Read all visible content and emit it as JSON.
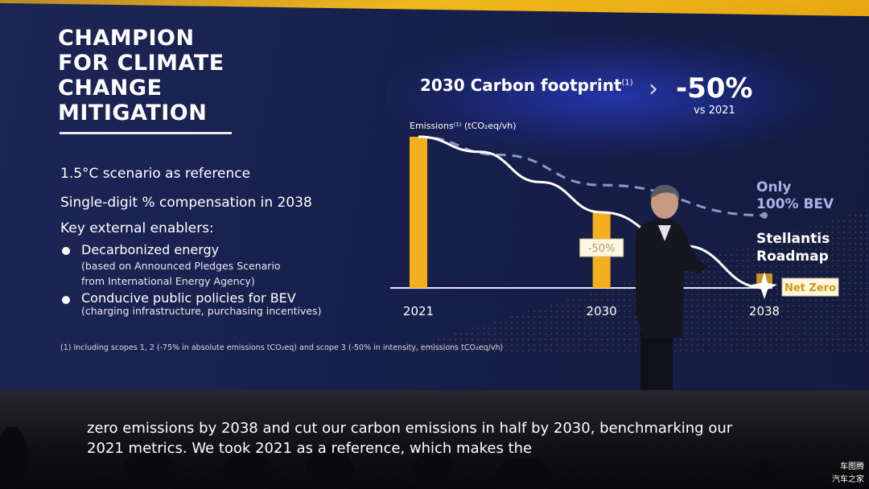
{
  "slide": {
    "title": "CHAMPION\nFOR CLIMATE\nCHANGE\nMITIGATION",
    "scenario": "1.5°C scenario as reference",
    "compensation": "Single-digit % compensation in 2038",
    "enablers_heading": "Key external enablers:",
    "enablers": [
      {
        "label": "Decarbonized energy",
        "detail": "(based on Announced Pledges Scenario\nfrom International Energy Agency)"
      },
      {
        "label": "Conducive public policies for BEV",
        "detail": "(charging infrastructure, purchasing incentives)"
      }
    ],
    "footnote": "(1) Including scopes 1, 2 (-75% in absolute emissions tCO₂eq) and scope 3 (-50% in intensity, emissions tCO₂eq/vh)",
    "footprint_title": "2030 Carbon footprint",
    "footprint_sup": "(1)",
    "footprint_value": "-50%",
    "footprint_vs": "vs 2021"
  },
  "chart_data": {
    "type": "bar",
    "ylabel": "Emissions⁽¹⁾ (tCO₂eq/vh)",
    "categories": [
      "2021",
      "2030",
      "2038"
    ],
    "values": [
      100,
      50,
      0
    ],
    "annotations": [
      "-50%",
      "Net Zero"
    ],
    "ylim": [
      0,
      100
    ],
    "series": [
      {
        "name": "Only\n100% BEV",
        "x": [
          2021,
          2025,
          2030,
          2038
        ],
        "values": [
          100,
          88,
          68,
          48
        ]
      },
      {
        "name": "Stellantis\nRoadmap",
        "x": [
          2021,
          2024,
          2027,
          2030,
          2034,
          2038
        ],
        "values": [
          100,
          90,
          70,
          50,
          28,
          0
        ]
      }
    ],
    "colors": {
      "bars": "#f2b01e",
      "line": "#ffffff",
      "dashed": "#8e96c8",
      "label_bg": "#fff6e0"
    }
  },
  "captions": [
    "zero emissions by 2038 and cut our carbon emissions in half by 2030, benchmarking our",
    "2021 metrics. We took 2021 as a reference, which makes the"
  ],
  "watermark": [
    "车图腾",
    "汽车之家"
  ]
}
